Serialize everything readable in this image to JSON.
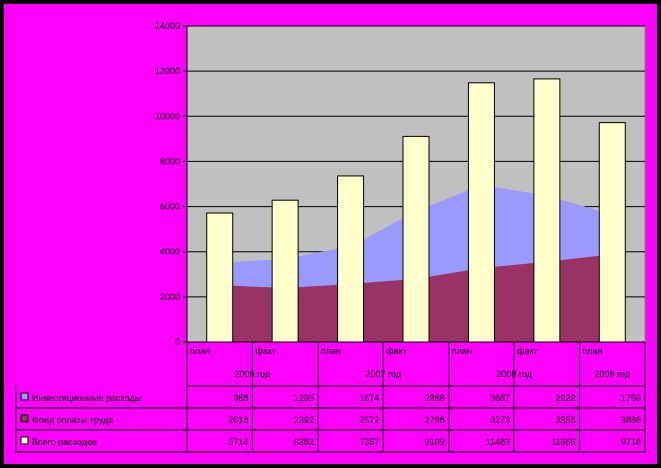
{
  "chart_data": {
    "type": "bar",
    "ylim": [
      0,
      14000
    ],
    "yticks": [
      "0",
      "2000",
      "4000",
      "6000",
      "8000",
      "10000",
      "12000",
      "14000"
    ],
    "categories": [
      {
        "sub": "план",
        "group": "2006 год"
      },
      {
        "sub": "факт",
        "group": "2006 год"
      },
      {
        "sub": "план",
        "group": "2007 год"
      },
      {
        "sub": "факт",
        "group": "2007 год"
      },
      {
        "sub": "план",
        "group": "2008 год"
      },
      {
        "sub": "факт",
        "group": "2008 год"
      },
      {
        "sub": "план",
        "group": "2009 год"
      }
    ],
    "groups": [
      "2006 год",
      "2007 год",
      "2008 год",
      "2009 год"
    ],
    "series": [
      {
        "name": "Инвестиционные расходы",
        "type": "area",
        "stacked": true,
        "color": "#9999ff",
        "values": [
          988,
          1295,
          1674,
          2988,
          3687,
          2929,
          1756
        ],
        "labels": [
          "988",
          "1295",
          "1674",
          "2988",
          "3687",
          "2929",
          "1756"
        ]
      },
      {
        "name": "Фонд оплаты труда",
        "type": "area",
        "color": "#993366",
        "values": [
          2518,
          2392,
          2572,
          2798,
          3273,
          3558,
          3886
        ],
        "labels": [
          "2518",
          "2392",
          "2572",
          "2798",
          "3273",
          "3558",
          "3886"
        ]
      },
      {
        "name": "Всего расходов",
        "type": "bar",
        "color": "#ffffcc",
        "values": [
          5714,
          6282,
          7357,
          9109,
          11483,
          11656,
          9718
        ],
        "labels": [
          "5714",
          "6282",
          "7357",
          "9109",
          "11483",
          "11656",
          "9718"
        ]
      }
    ],
    "grid": true,
    "plot_background": "#c0c0c0",
    "frame_background": "#ff00ff"
  }
}
